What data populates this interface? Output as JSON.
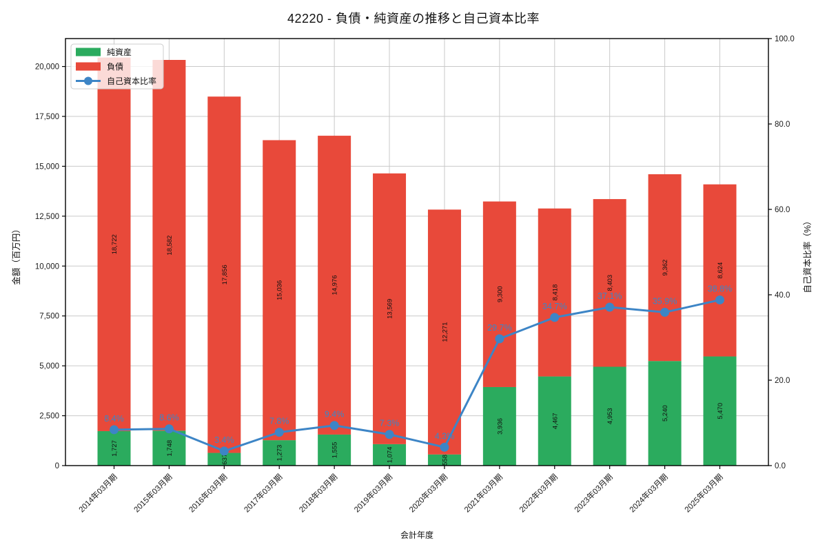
{
  "title": "42220 - 負債・純資産の推移と自己資本比率",
  "chart_data": {
    "type": "bar",
    "stacked": true,
    "title": "42220 - 負債・純資産の推移と自己資本比率",
    "xlabel": "会計年度",
    "ylabel_left": "金額（百万円）",
    "ylabel_right": "自己資本比率（%）",
    "categories": [
      "2014年03月期",
      "2015年03月期",
      "2016年03月期",
      "2017年03月期",
      "2018年03月期",
      "2019年03月期",
      "2020年03月期",
      "2021年03月期",
      "2022年03月期",
      "2023年03月期",
      "2024年03月期",
      "2025年03月期"
    ],
    "series": [
      {
        "name": "純資産",
        "type": "bar",
        "color": "#2bab5e",
        "values": [
          1727,
          1748,
          637,
          1273,
          1555,
          1074,
          558,
          3936,
          4467,
          4953,
          5240,
          5470
        ]
      },
      {
        "name": "負債",
        "type": "bar",
        "color": "#e8493a",
        "values": [
          18722,
          18582,
          17856,
          15036,
          14976,
          13569,
          12271,
          9300,
          8418,
          8403,
          9362,
          8624
        ]
      },
      {
        "name": "自己資本比率",
        "type": "line",
        "axis": "right",
        "color": "#3d85c6",
        "values": [
          8.4,
          8.6,
          3.4,
          7.8,
          9.4,
          7.3,
          4.3,
          29.7,
          34.7,
          37.1,
          35.9,
          38.8
        ],
        "point_labels": [
          "8.4%",
          "8.6%",
          "3.4%",
          "7.8%",
          "9.4%",
          "7.3%",
          "4.3%",
          "29.7%",
          "34.7%",
          "37.1%",
          "35.9%",
          "38.8%"
        ]
      }
    ],
    "bar_value_labels": {
      "純資産": [
        "1,727",
        "1,748",
        "637",
        "1,273",
        "1,555",
        "1,074",
        "558",
        "3,936",
        "4,467",
        "4,953",
        "5,240",
        "5,470"
      ],
      "負債": [
        "18,722",
        "18,582",
        "17,856",
        "15,036",
        "14,976",
        "13,569",
        "12,271",
        "9,300",
        "8,418",
        "8,403",
        "9,362",
        "8,624"
      ]
    },
    "ylim_left": [
      0,
      21400
    ],
    "ylim_right": [
      0,
      100
    ],
    "yticks_left_values": [
      0,
      2500,
      5000,
      7500,
      10000,
      12500,
      15000,
      17500,
      20000
    ],
    "yticks_left_labels": [
      "0",
      "2,500",
      "5,000",
      "7,500",
      "10,000",
      "12,500",
      "15,000",
      "17,500",
      "20,000"
    ],
    "yticks_right_values": [
      0,
      20,
      40,
      60,
      80,
      100
    ],
    "yticks_right_labels": [
      "0.0",
      "20.0",
      "40.0",
      "60.0",
      "80.0",
      "100.0"
    ],
    "grid": true,
    "grid_color": "#c9c9c9",
    "legend_position": "upper-left",
    "legend_labels": [
      "純資産",
      "負債",
      "自己資本比率"
    ],
    "colors": {
      "net_assets": "#2bab5e",
      "liabilities": "#e8493a",
      "ratio_line": "#3d85c6"
    }
  }
}
